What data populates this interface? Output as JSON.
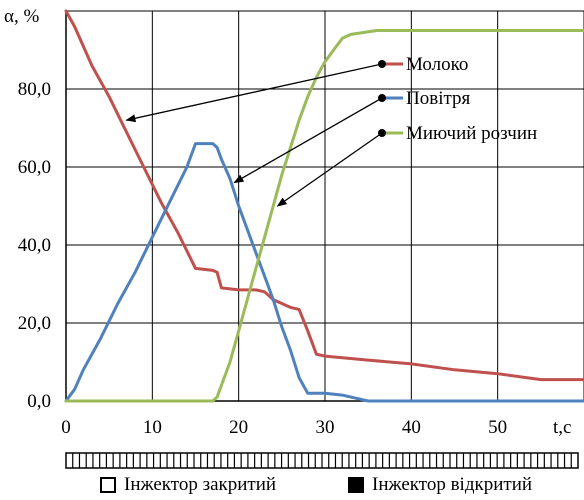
{
  "chart_data": {
    "type": "line",
    "y_axis_label": "α, %",
    "x_axis_label": "t,c",
    "x_ticks": [
      "0",
      "10",
      "20",
      "30",
      "40",
      "50"
    ],
    "y_ticks": [
      "0,0",
      "20,0",
      "40,0",
      "60,0",
      "80,0"
    ],
    "xlim": [
      0,
      60
    ],
    "ylim": [
      0,
      100
    ],
    "grid": true,
    "series": [
      {
        "name": "Молоко",
        "color": "#c0504d",
        "points": [
          [
            0,
            100
          ],
          [
            1,
            96
          ],
          [
            2,
            91
          ],
          [
            3,
            86
          ],
          [
            5,
            78
          ],
          [
            7,
            69
          ],
          [
            9,
            60
          ],
          [
            11,
            51
          ],
          [
            13,
            43
          ],
          [
            15,
            34
          ],
          [
            17,
            33.5
          ],
          [
            17.5,
            33
          ],
          [
            18,
            29
          ],
          [
            20,
            28.5
          ],
          [
            22,
            28.5
          ],
          [
            23,
            28
          ],
          [
            24,
            26
          ],
          [
            25,
            25
          ],
          [
            26,
            24
          ],
          [
            27,
            23.5
          ],
          [
            28,
            18
          ],
          [
            29,
            12
          ],
          [
            30,
            11.5
          ],
          [
            35,
            10.5
          ],
          [
            40,
            9.5
          ],
          [
            45,
            8
          ],
          [
            50,
            7
          ],
          [
            55,
            5.5
          ],
          [
            60,
            5.5
          ]
        ]
      },
      {
        "name": "Повітря",
        "color": "#4f81bd",
        "points": [
          [
            0,
            0
          ],
          [
            1,
            3
          ],
          [
            2,
            8
          ],
          [
            4,
            16
          ],
          [
            6,
            25
          ],
          [
            8,
            33
          ],
          [
            10,
            42
          ],
          [
            12,
            51
          ],
          [
            14,
            60
          ],
          [
            15,
            66
          ],
          [
            16,
            66
          ],
          [
            17,
            66
          ],
          [
            17.5,
            65
          ],
          [
            18,
            62
          ],
          [
            19,
            57
          ],
          [
            20,
            50
          ],
          [
            21,
            44
          ],
          [
            22,
            38
          ],
          [
            23,
            32
          ],
          [
            24,
            26
          ],
          [
            25,
            19
          ],
          [
            26,
            13
          ],
          [
            27,
            6
          ],
          [
            28,
            2
          ],
          [
            30,
            2
          ],
          [
            32,
            1.5
          ],
          [
            33,
            1
          ],
          [
            35,
            0
          ],
          [
            60,
            0
          ]
        ]
      },
      {
        "name": "Миючий розчин",
        "color": "#9bbb59",
        "points": [
          [
            0,
            0
          ],
          [
            17,
            0
          ],
          [
            17.5,
            1
          ],
          [
            18,
            4
          ],
          [
            19,
            10
          ],
          [
            20,
            18
          ],
          [
            21,
            26
          ],
          [
            22,
            34
          ],
          [
            23,
            42
          ],
          [
            24,
            50
          ],
          [
            25,
            58
          ],
          [
            26,
            65
          ],
          [
            27,
            72
          ],
          [
            28,
            78
          ],
          [
            29,
            83
          ],
          [
            30,
            87
          ],
          [
            31,
            90
          ],
          [
            32,
            93
          ],
          [
            33,
            94
          ],
          [
            36,
            95
          ],
          [
            40,
            95
          ],
          [
            60,
            95
          ]
        ]
      }
    ],
    "annotations": [
      {
        "text": "Молоко",
        "series": 0,
        "target": [
          7,
          72
        ]
      },
      {
        "text": "Повітря",
        "series": 1,
        "target": [
          19.5,
          56
        ]
      },
      {
        "text": "Миючий розчин",
        "series": 2,
        "target": [
          24.5,
          50
        ]
      }
    ],
    "injector_bar": {
      "total_cells": 76,
      "closed_label": "Інжектор закритий",
      "open_label": "Інжектор відкритий"
    }
  }
}
